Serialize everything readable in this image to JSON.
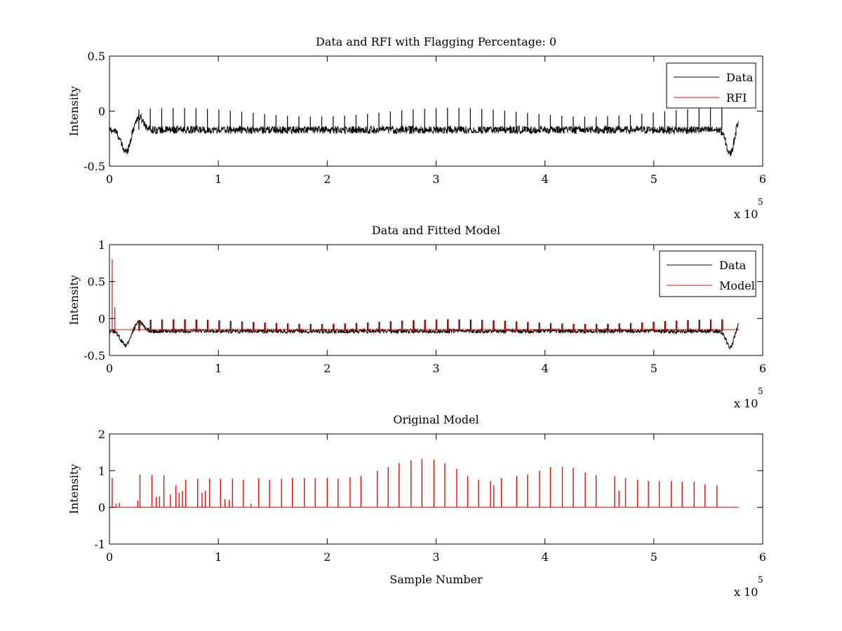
{
  "figure": {
    "background": "#ffffff",
    "axes_color": "#000000"
  },
  "chart_data": [
    {
      "type": "line",
      "title": "Data and RFI with Flagging Percentage: 0",
      "xlabel": "",
      "ylabel": "Intensity",
      "xlim": [
        0,
        600000
      ],
      "ylim": [
        -0.5,
        0.5
      ],
      "xticks": [
        0,
        100000,
        200000,
        300000,
        400000,
        500000,
        600000
      ],
      "xtick_labels": [
        "0",
        "1",
        "2",
        "3",
        "4",
        "5",
        "6"
      ],
      "yticks": [
        -0.5,
        0,
        0.5
      ],
      "ytick_labels": [
        "-0.5",
        "0",
        "0.5"
      ],
      "x_multiplier": {
        "base": "x 10",
        "exponent": "5"
      },
      "legend_position": "top-right",
      "x_end": 578000,
      "baseline": -0.17,
      "noise": 0.035,
      "spikes": {
        "from": 27000,
        "to": 572000,
        "step": 10500,
        "amplitude": 0.2
      },
      "edge_dips": [
        {
          "x": 15000,
          "width": 6000,
          "depth": -0.2
        },
        {
          "x": 570000,
          "width": 5000,
          "depth": -0.22
        }
      ],
      "series": [
        {
          "name": "Data",
          "color": "#000000",
          "visible": true
        },
        {
          "name": "RFI",
          "color": "#ff0000",
          "visible": false
        }
      ]
    },
    {
      "type": "line",
      "title": "Data and Fitted Model",
      "xlabel": "",
      "ylabel": "Intensity",
      "xlim": [
        0,
        600000
      ],
      "ylim": [
        -0.5,
        1
      ],
      "xticks": [
        0,
        100000,
        200000,
        300000,
        400000,
        500000,
        600000
      ],
      "xtick_labels": [
        "0",
        "1",
        "2",
        "3",
        "4",
        "5",
        "6"
      ],
      "yticks": [
        -0.5,
        0,
        0.5,
        1
      ],
      "ytick_labels": [
        "-0.5",
        "0",
        "0.5",
        "1"
      ],
      "x_multiplier": {
        "base": "x 10",
        "exponent": "5"
      },
      "legend_position": "top-right",
      "x_end": 578000,
      "baseline": -0.17,
      "noise": 0.03,
      "spikes": {
        "from": 27000,
        "to": 572000,
        "step": 10500,
        "amplitude": 0.16
      },
      "model_start_spike": {
        "x": 2500,
        "value": 0.8
      },
      "edge_dips": [
        {
          "x": 15000,
          "width": 6000,
          "depth": -0.2
        },
        {
          "x": 570000,
          "width": 5000,
          "depth": -0.22
        }
      ],
      "series": [
        {
          "name": "Data",
          "color": "#000000"
        },
        {
          "name": "Model",
          "color": "#ff0000"
        }
      ]
    },
    {
      "type": "line",
      "title": "Original Model",
      "xlabel": "Sample Number",
      "ylabel": "Intensity",
      "xlim": [
        0,
        600000
      ],
      "ylim": [
        -1,
        2
      ],
      "xticks": [
        0,
        100000,
        200000,
        300000,
        400000,
        500000,
        600000
      ],
      "xtick_labels": [
        "0",
        "1",
        "2",
        "3",
        "4",
        "5",
        "6"
      ],
      "yticks": [
        -1,
        0,
        1,
        2
      ],
      "ytick_labels": [
        "-1",
        "0",
        "1",
        "2"
      ],
      "x_multiplier": {
        "base": "x 10",
        "exponent": "5"
      },
      "x_end": 578000,
      "series": [
        {
          "name": "",
          "color": "#ff0000",
          "peaks": [
            [
              2500,
              0.8
            ],
            [
              6000,
              0.1
            ],
            [
              9000,
              0.12
            ],
            [
              26000,
              0.18
            ],
            [
              28000,
              0.9
            ],
            [
              39000,
              0.88
            ],
            [
              43000,
              0.28
            ],
            [
              46000,
              0.3
            ],
            [
              50000,
              0.88
            ],
            [
              56000,
              0.35
            ],
            [
              61000,
              0.6
            ],
            [
              64000,
              0.4
            ],
            [
              67000,
              0.45
            ],
            [
              70000,
              0.75
            ],
            [
              81000,
              0.78
            ],
            [
              85000,
              0.4
            ],
            [
              88000,
              0.45
            ],
            [
              92000,
              0.78
            ],
            [
              102000,
              0.78
            ],
            [
              106000,
              0.22
            ],
            [
              110000,
              0.2
            ],
            [
              113000,
              0.78
            ],
            [
              123000,
              0.75
            ],
            [
              130000,
              0.1
            ],
            [
              137000,
              0.8
            ],
            [
              147000,
              0.75
            ],
            [
              158000,
              0.78
            ],
            [
              168000,
              0.8
            ],
            [
              179000,
              0.8
            ],
            [
              189000,
              0.8
            ],
            [
              200000,
              0.8
            ],
            [
              210000,
              0.78
            ],
            [
              221000,
              0.82
            ],
            [
              231000,
              0.85
            ],
            [
              246000,
              1.0
            ],
            [
              256000,
              1.1
            ],
            [
              266000,
              1.2
            ],
            [
              277000,
              1.28
            ],
            [
              287000,
              1.32
            ],
            [
              298000,
              1.3
            ],
            [
              308000,
              1.2
            ],
            [
              319000,
              1.05
            ],
            [
              329000,
              0.85
            ],
            [
              339000,
              0.75
            ],
            [
              350000,
              0.72
            ],
            [
              353000,
              0.6
            ],
            [
              360000,
              0.8
            ],
            [
              374000,
              0.85
            ],
            [
              384000,
              0.9
            ],
            [
              395000,
              1.0
            ],
            [
              405000,
              1.1
            ],
            [
              416000,
              1.1
            ],
            [
              426000,
              1.08
            ],
            [
              437000,
              0.95
            ],
            [
              447000,
              0.88
            ],
            [
              464000,
              0.85
            ],
            [
              468000,
              0.45
            ],
            [
              474000,
              0.8
            ],
            [
              485000,
              0.75
            ],
            [
              495000,
              0.72
            ],
            [
              505000,
              0.72
            ],
            [
              516000,
              0.72
            ],
            [
              526000,
              0.7
            ],
            [
              537000,
              0.7
            ],
            [
              547000,
              0.62
            ],
            [
              558000,
              0.6
            ]
          ]
        }
      ]
    }
  ]
}
